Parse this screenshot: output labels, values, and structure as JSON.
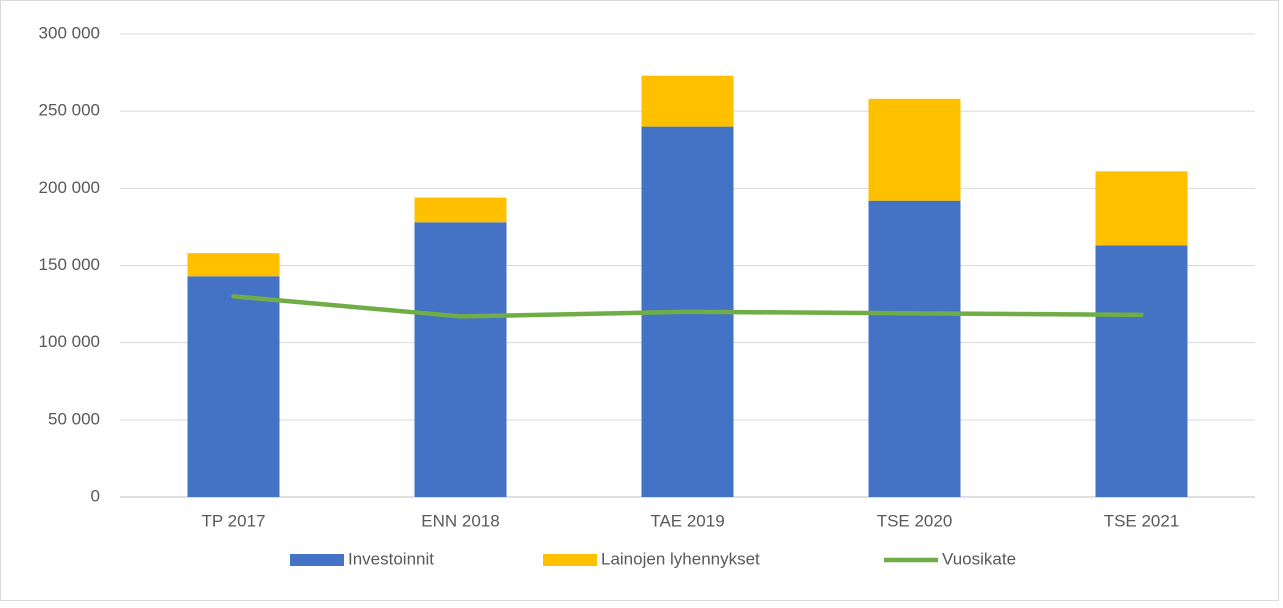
{
  "chart_data": {
    "type": "bar",
    "categories": [
      "TP 2017",
      "ENN 2018",
      "TAE 2019",
      "TSE 2020",
      "TSE 2021"
    ],
    "series": [
      {
        "name": "Investoinnit",
        "color": "#4472c4",
        "type": "bar",
        "values": [
          143000,
          178000,
          240000,
          192000,
          163000
        ]
      },
      {
        "name": "Lainojen lyhennykset",
        "color": "#ffc000",
        "type": "bar",
        "values": [
          15000,
          16000,
          33000,
          66000,
          48000
        ]
      },
      {
        "name": "Vuosikate",
        "color": "#70ad47",
        "type": "line",
        "values": [
          130000,
          117000,
          120000,
          119000,
          118000
        ]
      }
    ],
    "stacked": true,
    "ylim": [
      0,
      300000
    ],
    "yticks": [
      0,
      {
        "value": 50000,
        "label": "50 000"
      },
      {
        "value": 100000,
        "label": "100 000"
      },
      {
        "value": 150000,
        "label": "150 000"
      },
      {
        "value": 200000,
        "label": "200 000"
      },
      {
        "value": 250000,
        "label": "250 000"
      },
      {
        "value": 300000,
        "label": "300 000"
      }
    ],
    "grid": true,
    "legend": "bottom"
  }
}
